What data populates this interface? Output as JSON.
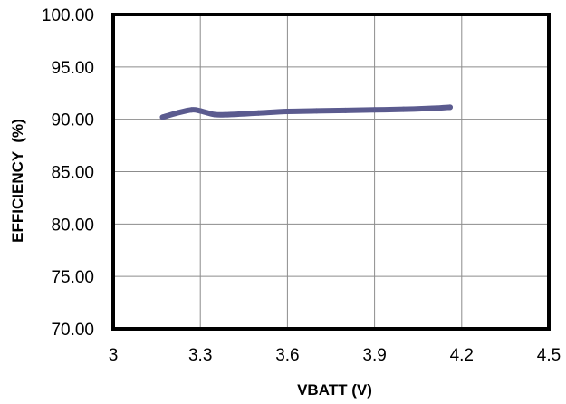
{
  "chart_data": {
    "type": "line",
    "title": "",
    "xlabel": "VBATT (V)",
    "ylabel": "EFFICIENCY  (%)",
    "xlim": [
      3,
      4.5
    ],
    "ylim": [
      70,
      100
    ],
    "x_ticks": [
      "3",
      "3.3",
      "3.6",
      "3.9",
      "4.2",
      "4.5"
    ],
    "y_ticks": [
      "70.00",
      "75.00",
      "80.00",
      "85.00",
      "90.00",
      "95.00",
      "100.00"
    ],
    "grid": true,
    "legend": "none",
    "series": [
      {
        "color": "#5b5b8f",
        "x": [
          3.17,
          3.22,
          3.27,
          3.3,
          3.35,
          3.4,
          3.5,
          3.6,
          3.7,
          3.8,
          3.9,
          4.0,
          4.1,
          4.16
        ],
        "y": [
          90.2,
          90.6,
          90.9,
          90.8,
          90.45,
          90.45,
          90.6,
          90.75,
          90.8,
          90.85,
          90.9,
          90.95,
          91.05,
          91.15
        ]
      }
    ]
  }
}
